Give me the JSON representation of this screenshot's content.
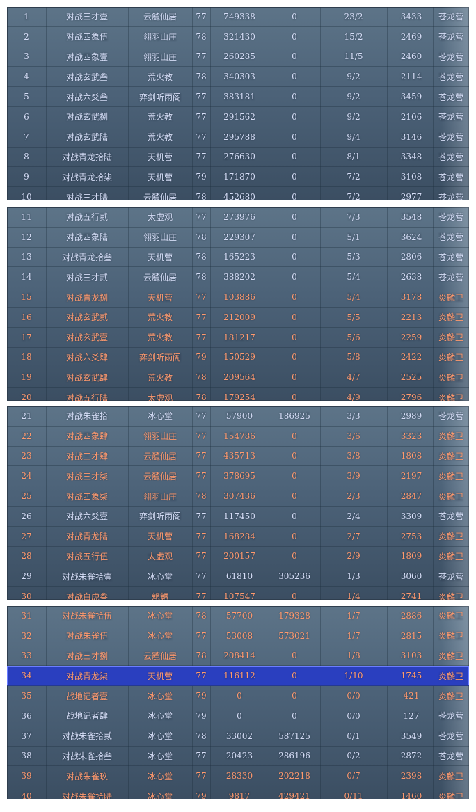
{
  "panels": [
    {
      "rows": [
        {
          "rank": "1",
          "name": "对战三才壹",
          "sect": "云麓仙居",
          "level": "77",
          "score_a": "749338",
          "score_b": "0",
          "record": "23/2",
          "score_c": "3433",
          "faction": "苍龙营",
          "color": "blue"
        },
        {
          "rank": "2",
          "name": "对战四象伍",
          "sect": "翎羽山庄",
          "level": "78",
          "score_a": "321430",
          "score_b": "0",
          "record": "15/2",
          "score_c": "2469",
          "faction": "苍龙营",
          "color": "blue"
        },
        {
          "rank": "3",
          "name": "对战四象壹",
          "sect": "翎羽山庄",
          "level": "77",
          "score_a": "260285",
          "score_b": "0",
          "record": "11/5",
          "score_c": "2460",
          "faction": "苍龙营",
          "color": "blue"
        },
        {
          "rank": "4",
          "name": "对战玄武叁",
          "sect": "荒火教",
          "level": "78",
          "score_a": "340303",
          "score_b": "0",
          "record": "9/2",
          "score_c": "2114",
          "faction": "苍龙营",
          "color": "blue"
        },
        {
          "rank": "5",
          "name": "对战六爻叁",
          "sect": "弈剑听雨阁",
          "level": "77",
          "score_a": "383181",
          "score_b": "0",
          "record": "9/2",
          "score_c": "3459",
          "faction": "苍龙营",
          "color": "blue"
        },
        {
          "rank": "6",
          "name": "对战玄武捌",
          "sect": "荒火教",
          "level": "77",
          "score_a": "291562",
          "score_b": "0",
          "record": "9/2",
          "score_c": "2106",
          "faction": "苍龙营",
          "color": "blue"
        },
        {
          "rank": "7",
          "name": "对战玄武陆",
          "sect": "荒火教",
          "level": "77",
          "score_a": "295788",
          "score_b": "0",
          "record": "9/4",
          "score_c": "3146",
          "faction": "苍龙营",
          "color": "blue"
        },
        {
          "rank": "8",
          "name": "对战青龙拾陆",
          "sect": "天机营",
          "level": "77",
          "score_a": "276630",
          "score_b": "0",
          "record": "8/1",
          "score_c": "3348",
          "faction": "苍龙营",
          "color": "blue"
        },
        {
          "rank": "9",
          "name": "对战青龙拾柒",
          "sect": "天机营",
          "level": "79",
          "score_a": "171870",
          "score_b": "0",
          "record": "7/2",
          "score_c": "3108",
          "faction": "苍龙营",
          "color": "blue"
        },
        {
          "rank": "10",
          "name": "对战三才陆",
          "sect": "云麓仙居",
          "level": "78",
          "score_a": "452680",
          "score_b": "0",
          "record": "7/2",
          "score_c": "2977",
          "faction": "苍龙营",
          "color": "blue"
        }
      ]
    },
    {
      "rows": [
        {
          "rank": "11",
          "name": "对战五行贰",
          "sect": "太虚观",
          "level": "77",
          "score_a": "273976",
          "score_b": "0",
          "record": "7/3",
          "score_c": "3548",
          "faction": "苍龙营",
          "color": "blue"
        },
        {
          "rank": "12",
          "name": "对战四象陆",
          "sect": "翎羽山庄",
          "level": "78",
          "score_a": "229307",
          "score_b": "0",
          "record": "5/1",
          "score_c": "3624",
          "faction": "苍龙营",
          "color": "blue"
        },
        {
          "rank": "13",
          "name": "对战青龙拾叁",
          "sect": "天机营",
          "level": "78",
          "score_a": "165223",
          "score_b": "0",
          "record": "5/3",
          "score_c": "2806",
          "faction": "苍龙营",
          "color": "blue"
        },
        {
          "rank": "14",
          "name": "对战三才贰",
          "sect": "云麓仙居",
          "level": "78",
          "score_a": "388202",
          "score_b": "0",
          "record": "5/4",
          "score_c": "2638",
          "faction": "苍龙营",
          "color": "blue"
        },
        {
          "rank": "15",
          "name": "对战青龙捌",
          "sect": "天机营",
          "level": "77",
          "score_a": "103886",
          "score_b": "0",
          "record": "5/4",
          "score_c": "3178",
          "faction": "炎麟卫",
          "color": "red"
        },
        {
          "rank": "16",
          "name": "对战玄武贰",
          "sect": "荒火教",
          "level": "77",
          "score_a": "212009",
          "score_b": "0",
          "record": "5/5",
          "score_c": "2213",
          "faction": "炎麟卫",
          "color": "red"
        },
        {
          "rank": "17",
          "name": "对战玄武壹",
          "sect": "荒火教",
          "level": "77",
          "score_a": "181217",
          "score_b": "0",
          "record": "5/6",
          "score_c": "2259",
          "faction": "炎麟卫",
          "color": "red"
        },
        {
          "rank": "18",
          "name": "对战六爻肆",
          "sect": "弈剑听雨阁",
          "level": "79",
          "score_a": "150529",
          "score_b": "0",
          "record": "5/8",
          "score_c": "2422",
          "faction": "炎麟卫",
          "color": "red"
        },
        {
          "rank": "19",
          "name": "对战玄武肆",
          "sect": "荒火教",
          "level": "78",
          "score_a": "209564",
          "score_b": "0",
          "record": "4/7",
          "score_c": "2525",
          "faction": "炎麟卫",
          "color": "red"
        },
        {
          "rank": "20",
          "name": "对战五行陆",
          "sect": "太虚观",
          "level": "78",
          "score_a": "179254",
          "score_b": "0",
          "record": "4/9",
          "score_c": "2796",
          "faction": "炎麟卫",
          "color": "red"
        }
      ]
    },
    {
      "rows": [
        {
          "rank": "21",
          "name": "对战朱雀拾",
          "sect": "冰心堂",
          "level": "77",
          "score_a": "57900",
          "score_b": "186925",
          "record": "3/3",
          "score_c": "2989",
          "faction": "苍龙营",
          "color": "blue"
        },
        {
          "rank": "22",
          "name": "对战四象肆",
          "sect": "翎羽山庄",
          "level": "77",
          "score_a": "154786",
          "score_b": "0",
          "record": "3/6",
          "score_c": "3323",
          "faction": "炎麟卫",
          "color": "red"
        },
        {
          "rank": "23",
          "name": "对战三才肆",
          "sect": "云麓仙居",
          "level": "77",
          "score_a": "435713",
          "score_b": "0",
          "record": "3/8",
          "score_c": "1808",
          "faction": "炎麟卫",
          "color": "red"
        },
        {
          "rank": "24",
          "name": "对战三才柒",
          "sect": "云麓仙居",
          "level": "77",
          "score_a": "378695",
          "score_b": "0",
          "record": "3/9",
          "score_c": "2197",
          "faction": "炎麟卫",
          "color": "red"
        },
        {
          "rank": "25",
          "name": "对战四象柒",
          "sect": "翎羽山庄",
          "level": "78",
          "score_a": "307436",
          "score_b": "0",
          "record": "2/3",
          "score_c": "2847",
          "faction": "炎麟卫",
          "color": "red"
        },
        {
          "rank": "26",
          "name": "对战六爻壹",
          "sect": "弈剑听雨阁",
          "level": "77",
          "score_a": "117450",
          "score_b": "0",
          "record": "2/4",
          "score_c": "3309",
          "faction": "苍龙营",
          "color": "blue"
        },
        {
          "rank": "27",
          "name": "对战青龙陆",
          "sect": "天机营",
          "level": "77",
          "score_a": "168284",
          "score_b": "0",
          "record": "2/7",
          "score_c": "2753",
          "faction": "炎麟卫",
          "color": "red"
        },
        {
          "rank": "28",
          "name": "对战五行伍",
          "sect": "太虚观",
          "level": "77",
          "score_a": "200157",
          "score_b": "0",
          "record": "2/9",
          "score_c": "1809",
          "faction": "炎麟卫",
          "color": "red"
        },
        {
          "rank": "29",
          "name": "对战朱雀拾壹",
          "sect": "冰心堂",
          "level": "77",
          "score_a": "61810",
          "score_b": "305236",
          "record": "1/3",
          "score_c": "3060",
          "faction": "苍龙营",
          "color": "blue"
        },
        {
          "rank": "30",
          "name": "对战白虎叁",
          "sect": "魍魉",
          "level": "77",
          "score_a": "107547",
          "score_b": "0",
          "record": "1/4",
          "score_c": "2741",
          "faction": "炎麟卫",
          "color": "red"
        }
      ]
    },
    {
      "rows": [
        {
          "rank": "31",
          "name": "对战朱雀拾伍",
          "sect": "冰心堂",
          "level": "78",
          "score_a": "57700",
          "score_b": "179328",
          "record": "1/7",
          "score_c": "2886",
          "faction": "炎麟卫",
          "color": "red"
        },
        {
          "rank": "32",
          "name": "对战朱雀伍",
          "sect": "冰心堂",
          "level": "77",
          "score_a": "53008",
          "score_b": "573021",
          "record": "1/7",
          "score_c": "2815",
          "faction": "炎麟卫",
          "color": "red"
        },
        {
          "rank": "33",
          "name": "对战三才捌",
          "sect": "云麓仙居",
          "level": "78",
          "score_a": "208414",
          "score_b": "0",
          "record": "1/8",
          "score_c": "3103",
          "faction": "炎麟卫",
          "color": "red"
        },
        {
          "rank": "34",
          "name": "对战青龙柒",
          "sect": "天机营",
          "level": "77",
          "score_a": "116112",
          "score_b": "0",
          "record": "1/10",
          "score_c": "1745",
          "faction": "炎麟卫",
          "color": "red",
          "selected": true
        },
        {
          "rank": "35",
          "name": "战地记者壹",
          "sect": "冰心堂",
          "level": "79",
          "score_a": "0",
          "score_b": "0",
          "record": "0/0",
          "score_c": "421",
          "faction": "炎麟卫",
          "color": "red"
        },
        {
          "rank": "36",
          "name": "战地记者肆",
          "sect": "冰心堂",
          "level": "79",
          "score_a": "0",
          "score_b": "0",
          "record": "0/0",
          "score_c": "127",
          "faction": "苍龙营",
          "color": "blue"
        },
        {
          "rank": "37",
          "name": "对战朱雀拾贰",
          "sect": "冰心堂",
          "level": "78",
          "score_a": "33002",
          "score_b": "587125",
          "record": "0/1",
          "score_c": "3549",
          "faction": "苍龙营",
          "color": "blue"
        },
        {
          "rank": "38",
          "name": "对战朱雀拾叁",
          "sect": "冰心堂",
          "level": "77",
          "score_a": "20423",
          "score_b": "286196",
          "record": "0/2",
          "score_c": "2872",
          "faction": "苍龙营",
          "color": "blue"
        },
        {
          "rank": "39",
          "name": "对战朱雀玖",
          "sect": "冰心堂",
          "level": "77",
          "score_a": "28330",
          "score_b": "202218",
          "record": "0/7",
          "score_c": "2398",
          "faction": "炎麟卫",
          "color": "red"
        },
        {
          "rank": "40",
          "name": "对战朱雀拾陆",
          "sect": "冰心堂",
          "level": "79",
          "score_a": "9817",
          "score_b": "429421",
          "record": "0/11",
          "score_c": "1460",
          "faction": "炎麟卫",
          "color": "red"
        }
      ]
    }
  ],
  "colors": {
    "blue_text": "#d6def7",
    "red_text": "#ff9a6e",
    "selected_row": "#2a3fbf"
  }
}
